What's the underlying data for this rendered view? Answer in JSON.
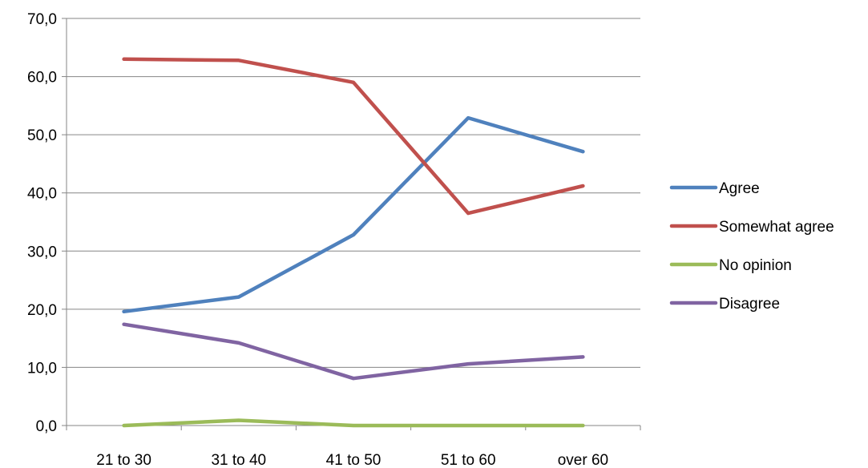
{
  "chart_data": {
    "type": "line",
    "title": "",
    "xlabel": "",
    "ylabel": "",
    "categories": [
      "21 to 30",
      "31 to 40",
      "41 to 50",
      "51 to 60",
      "over 60"
    ],
    "ylim": [
      0,
      70
    ],
    "yticks": [
      "0,0",
      "10,0",
      "20,0",
      "30,0",
      "40,0",
      "50,0",
      "60,0",
      "70,0"
    ],
    "ytick_values": [
      0,
      10,
      20,
      30,
      40,
      50,
      60,
      70
    ],
    "grid": "horizontal",
    "legend_position": "right",
    "series": [
      {
        "name": "Agree",
        "color": "#4f81bd",
        "values": [
          19.6,
          22.1,
          32.8,
          52.9,
          47.1
        ]
      },
      {
        "name": "Somewhat agree",
        "color": "#c0504d",
        "values": [
          63.0,
          62.8,
          59.0,
          36.5,
          41.2
        ]
      },
      {
        "name": "No opinion",
        "color": "#9bbb59",
        "values": [
          0.0,
          0.9,
          0.0,
          0.0,
          0.0
        ]
      },
      {
        "name": "Disagree",
        "color": "#8064a2",
        "values": [
          17.4,
          14.2,
          8.1,
          10.6,
          11.8
        ]
      }
    ]
  }
}
